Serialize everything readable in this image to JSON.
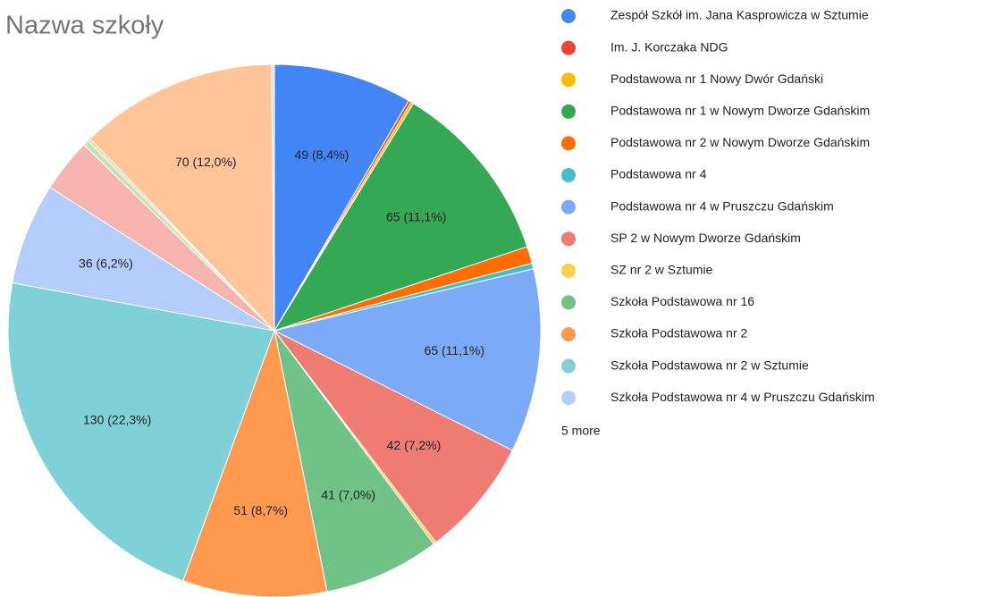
{
  "chart_data": {
    "type": "pie",
    "title": "Nazwa szkoły",
    "categories": [
      "Zespół Szkół im. Jana Kasprowicza w Sztumie",
      "Im. J. Korczaka NDG",
      "Podstawowa nr 1 Nowy Dwór Gdański",
      "Podstawowa nr 1 w Nowym Dworze Gdańskim",
      "Podstawowa nr 2 w Nowym Dworze Gdańskim",
      "Podstawowa nr 4",
      "Podstawowa nr 4 w Pruszczu Gdańskim",
      "SP 2 w Nowym Dworze Gdańskim",
      "SZ nr 2 w Sztumie",
      "Szkoła Podstawowa nr 16",
      "Szkoła Podstawowa nr 2",
      "Szkoła Podstawowa nr 2 w Sztumie",
      "Szkoła Podstawowa nr 4 w Pruszczu Gdańskim",
      null,
      null,
      null,
      null,
      null
    ],
    "values": [
      49,
      1,
      1,
      65,
      6,
      2,
      65,
      42,
      1,
      41,
      51,
      130,
      36,
      19,
      2,
      1,
      70,
      1
    ],
    "value_labels": [
      "49 (8,4%)",
      null,
      null,
      "65 (11,1%)",
      null,
      null,
      "65 (11,1%)",
      "42 (7,2%)",
      null,
      "41 (7,0%)",
      "51 (8,7%)",
      "130 (22,3%)",
      "36 (6,2%)",
      null,
      null,
      null,
      "70 (12,0%)",
      null
    ],
    "colors": [
      "#4285f4",
      "#ea4335",
      "#fbbc04",
      "#34a853",
      "#ff6d01",
      "#46bdc6",
      "#7baaf7",
      "#f07b72",
      "#fcd04f",
      "#71c287",
      "#ff994d",
      "#7ed1d7",
      "#b3cefb",
      "#f7b4ae",
      "#c6e3b5",
      "#e8d9a0",
      "#ffc599",
      "#dddddd"
    ],
    "legend_more": "5 more"
  }
}
